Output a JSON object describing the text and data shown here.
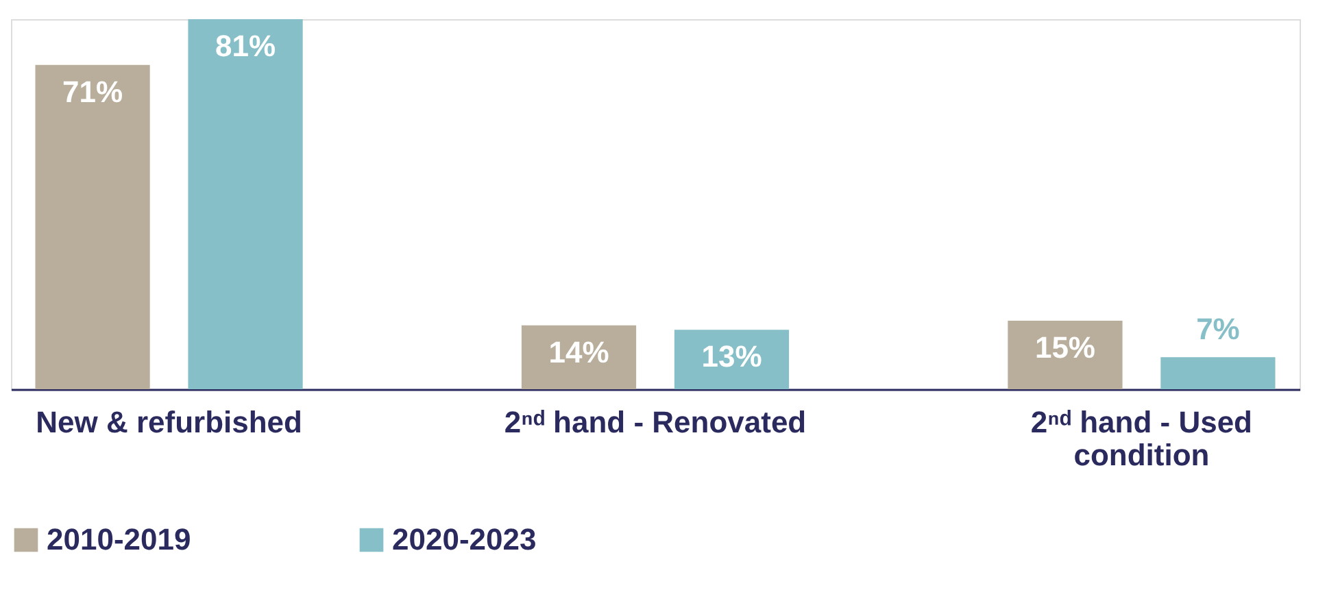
{
  "chart_data": {
    "type": "bar",
    "categories": [
      "New & refurbished",
      "2ⁿᵈ hand - Renovated",
      "2ⁿᵈ hand - Used condition"
    ],
    "series": [
      {
        "name": "2010-2019",
        "color": "#b9ae9b",
        "values": [
          71,
          14,
          15
        ],
        "value_labels": [
          "71%",
          "14%",
          "15%"
        ]
      },
      {
        "name": "2020-2023",
        "color": "#86bfc7",
        "values": [
          81,
          13,
          7
        ],
        "value_labels": [
          "81%",
          "13%",
          "7%"
        ]
      }
    ],
    "legend": "bottom",
    "grid": false
  }
}
